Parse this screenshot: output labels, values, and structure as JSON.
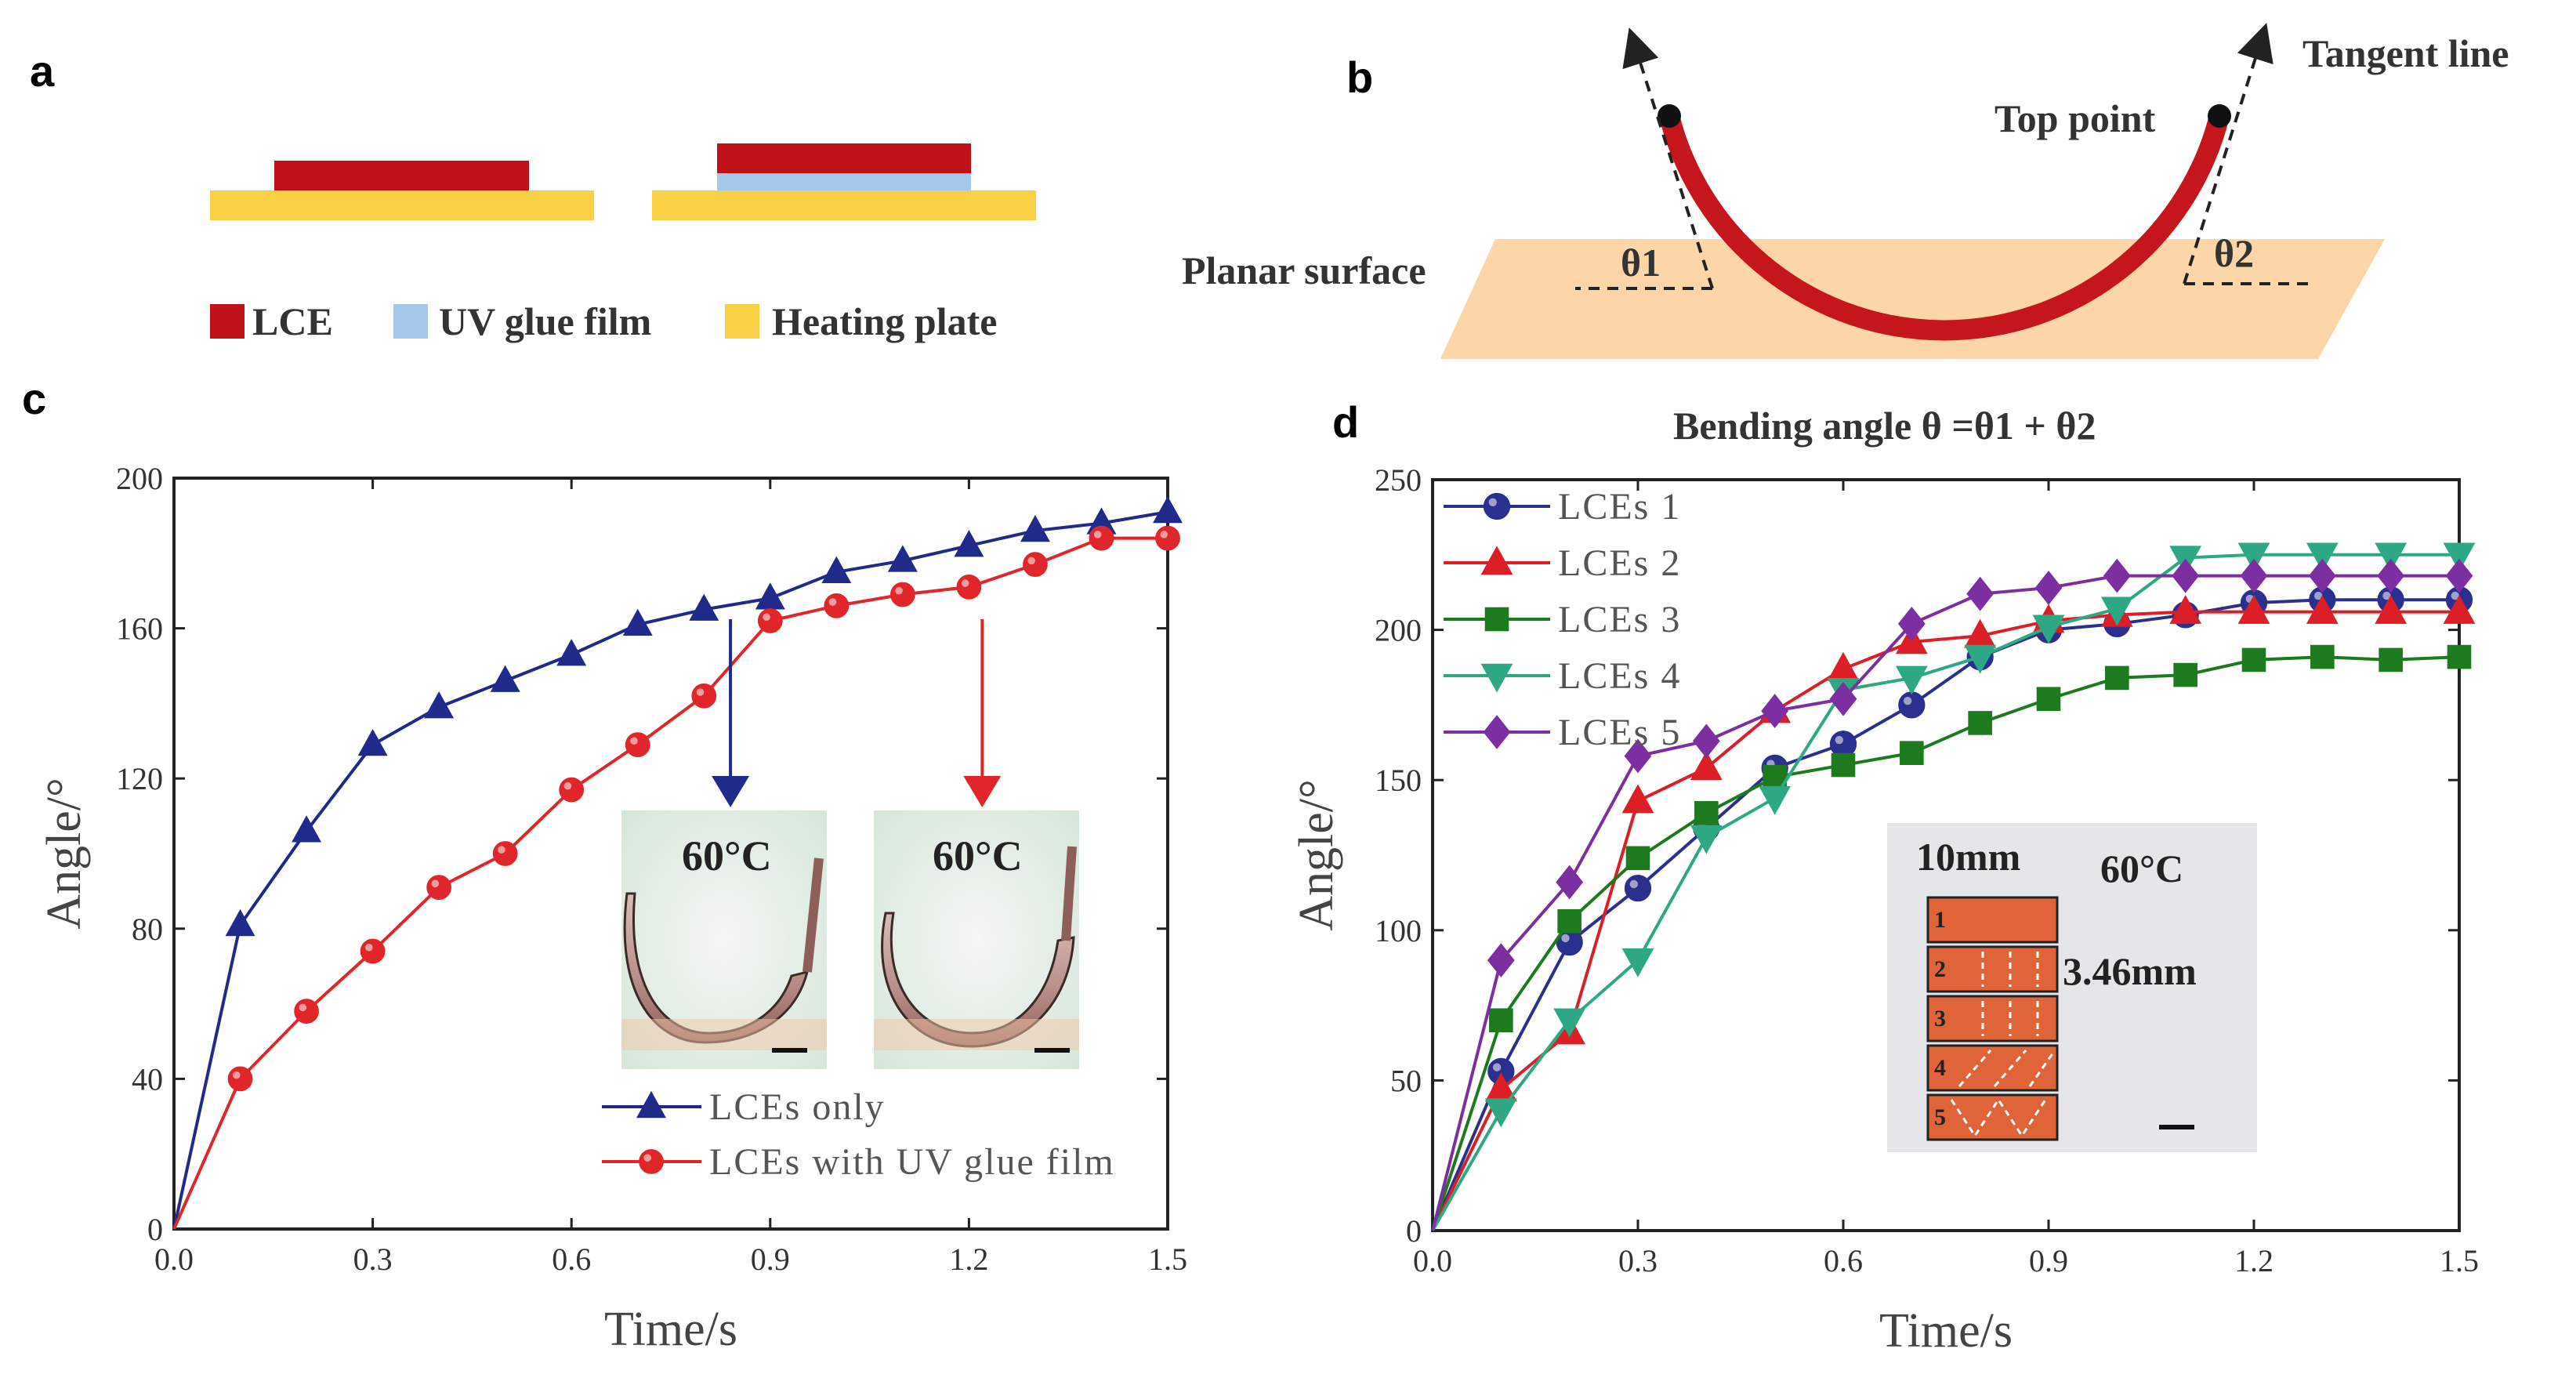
{
  "panels": {
    "a": {
      "letter": "a",
      "legend": [
        {
          "label": "LCE",
          "color": "#c0101a"
        },
        {
          "label": "UV glue film",
          "color": "#a6c8ea"
        },
        {
          "label": "Heating plate",
          "color": "#f7d046"
        }
      ]
    },
    "b": {
      "letter": "b",
      "tangent_label": "Tangent line",
      "top_point_label": "Top point",
      "surface_label": "Planar surface",
      "theta1": "θ1",
      "theta2": "θ2",
      "caption": "Bending angle θ =θ1 + θ2",
      "surface_color": "#fcd5a8",
      "strip_color": "#c4161c"
    },
    "c": {
      "letter": "c"
    },
    "d": {
      "letter": "d"
    }
  },
  "chart_data": [
    {
      "id": "c",
      "type": "line",
      "xlabel": "Time/s",
      "ylabel": "Angle/°",
      "xlim": [
        0,
        1.5
      ],
      "ylim": [
        0,
        200
      ],
      "xticks": [
        0.0,
        0.3,
        0.6,
        0.9,
        1.2,
        1.5
      ],
      "yticks": [
        0,
        40,
        80,
        120,
        160,
        200
      ],
      "x": [
        0,
        0.1,
        0.2,
        0.3,
        0.4,
        0.5,
        0.6,
        0.7,
        0.8,
        0.9,
        1.0,
        1.1,
        1.2,
        1.3,
        1.4,
        1.5
      ],
      "series": [
        {
          "name": "LCEs only",
          "color": "#1f2a8a",
          "marker": "triangle",
          "values": [
            0,
            81,
            106,
            129,
            139,
            146,
            153,
            161,
            165,
            168,
            175,
            178,
            182,
            186,
            188,
            191
          ]
        },
        {
          "name": "LCEs with UV glue film",
          "color": "#e0262a",
          "marker": "circle",
          "values": [
            0,
            40,
            58,
            74,
            91,
            100,
            117,
            129,
            142,
            162,
            166,
            169,
            171,
            177,
            184,
            184
          ]
        }
      ],
      "annotations": [
        {
          "text": "60°C",
          "target_x": 0.84,
          "color": "#1f2a8a"
        },
        {
          "text": "60°C",
          "target_x": 1.22,
          "color": "#e0262a"
        }
      ]
    },
    {
      "id": "d",
      "type": "line",
      "xlabel": "Time/s",
      "ylabel": "Angle/°",
      "xlim": [
        0,
        1.5
      ],
      "ylim": [
        0,
        250
      ],
      "xticks": [
        0.0,
        0.3,
        0.6,
        0.9,
        1.2,
        1.5
      ],
      "yticks": [
        0,
        50,
        100,
        150,
        200,
        250
      ],
      "x": [
        0,
        0.1,
        0.2,
        0.3,
        0.4,
        0.5,
        0.6,
        0.7,
        0.8,
        0.9,
        1.0,
        1.1,
        1.2,
        1.3,
        1.4,
        1.5
      ],
      "series": [
        {
          "name": "LCEs 1",
          "color": "#2b2f8e",
          "marker": "circle",
          "values": [
            0,
            53,
            96,
            114,
            134,
            154,
            162,
            175,
            191,
            200,
            202,
            205,
            209,
            210,
            210,
            210
          ]
        },
        {
          "name": "LCEs 2",
          "color": "#dc1f26",
          "marker": "triangle",
          "values": [
            0,
            47,
            66,
            143,
            154,
            173,
            187,
            196,
            198,
            203,
            205,
            206,
            206,
            206,
            206,
            206
          ]
        },
        {
          "name": "LCEs 3",
          "color": "#1e7a1e",
          "marker": "square",
          "values": [
            0,
            70,
            103,
            124,
            139,
            151,
            155,
            159,
            169,
            177,
            184,
            185,
            190,
            191,
            190,
            191
          ]
        },
        {
          "name": "LCEs 4",
          "color": "#2ea884",
          "marker": "triangle-down",
          "values": [
            0,
            40,
            70,
            90,
            131,
            144,
            180,
            184,
            191,
            201,
            207,
            224,
            225,
            225,
            225,
            225
          ]
        },
        {
          "name": "LCEs 5",
          "color": "#7b2fa0",
          "marker": "diamond",
          "values": [
            0,
            90,
            116,
            158,
            163,
            173,
            177,
            202,
            212,
            214,
            218,
            218,
            218,
            218,
            218,
            218
          ]
        }
      ],
      "inset": {
        "width_label": "10mm",
        "temp_label": "60°C",
        "height_label": "3.46mm",
        "strip_numbers": [
          "1",
          "2",
          "3",
          "4",
          "5"
        ]
      }
    }
  ]
}
